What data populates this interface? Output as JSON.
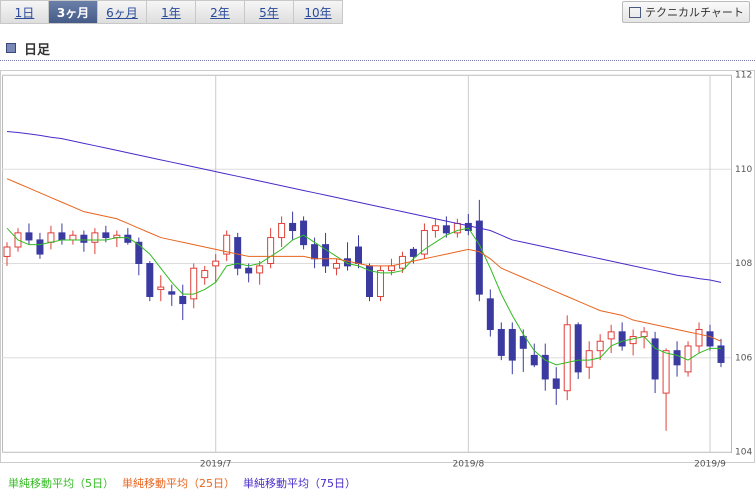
{
  "tabs": [
    "1日",
    "3ヶ月",
    "6ヶ月",
    "1年",
    "2年",
    "5年",
    "10年"
  ],
  "selected_tab": 1,
  "button": "テクニカルチャート",
  "section_title": "日足",
  "chart_data": {
    "type": "candlestick",
    "categories": [
      null,
      null,
      null,
      null,
      null,
      null,
      null,
      null,
      null,
      null,
      null,
      null,
      null,
      null,
      null,
      null,
      null,
      null,
      null,
      "2019/7",
      null,
      null,
      null,
      null,
      null,
      null,
      null,
      null,
      null,
      null,
      null,
      null,
      null,
      null,
      null,
      null,
      null,
      null,
      null,
      null,
      null,
      null,
      "2019/8",
      null,
      null,
      null,
      null,
      null,
      null,
      null,
      null,
      null,
      null,
      null,
      null,
      null,
      null,
      null,
      null,
      null,
      null,
      null,
      null,
      null,
      "2019/9",
      null
    ],
    "open": [
      108.15,
      108.35,
      108.65,
      108.5,
      108.45,
      108.65,
      108.5,
      108.6,
      108.45,
      108.65,
      108.55,
      108.6,
      108.45,
      108.0,
      107.45,
      107.4,
      107.3,
      107.25,
      107.7,
      107.95,
      108.2,
      108.55,
      107.9,
      107.8,
      108.0,
      108.55,
      108.85,
      108.9,
      108.4,
      108.4,
      107.9,
      108.1,
      108.35,
      107.95,
      107.3,
      107.85,
      107.9,
      108.3,
      108.2,
      108.7,
      108.8,
      108.65,
      108.85,
      108.9,
      107.25,
      106.6,
      106.6,
      106.45,
      106.05,
      106.05,
      105.55,
      105.3,
      106.7,
      105.8,
      106.15,
      106.4,
      106.55,
      106.3,
      106.45,
      106.4,
      105.25,
      106.15,
      105.7,
      106.25,
      106.55,
      106.25
    ],
    "high": [
      108.45,
      108.75,
      108.85,
      108.65,
      108.8,
      108.85,
      108.7,
      108.7,
      108.75,
      108.8,
      108.7,
      108.75,
      108.55,
      108.05,
      107.75,
      107.55,
      107.55,
      108.0,
      107.95,
      108.2,
      108.7,
      108.65,
      108.0,
      108.05,
      108.75,
      109.0,
      109.1,
      109.0,
      108.55,
      108.65,
      108.1,
      108.45,
      108.6,
      108.0,
      107.95,
      108.1,
      108.25,
      108.35,
      108.85,
      108.95,
      109.0,
      108.95,
      109.05,
      109.35,
      107.45,
      106.75,
      106.75,
      106.6,
      106.3,
      106.3,
      105.8,
      106.9,
      106.75,
      106.35,
      106.5,
      106.7,
      106.75,
      106.6,
      106.65,
      106.55,
      106.2,
      106.35,
      106.35,
      106.75,
      106.7,
      106.4
    ],
    "low": [
      107.95,
      108.25,
      108.4,
      108.1,
      108.3,
      108.4,
      108.4,
      108.25,
      108.2,
      108.45,
      108.35,
      108.4,
      107.75,
      107.2,
      107.2,
      107.1,
      106.8,
      107.05,
      107.55,
      107.6,
      108.05,
      107.75,
      107.6,
      107.55,
      107.9,
      108.35,
      108.5,
      108.3,
      107.9,
      107.8,
      107.75,
      107.85,
      107.9,
      107.2,
      107.2,
      107.75,
      107.8,
      108.0,
      108.1,
      108.55,
      108.55,
      108.55,
      108.6,
      107.2,
      106.45,
      105.95,
      105.65,
      105.7,
      105.8,
      105.3,
      105.0,
      105.1,
      105.55,
      105.55,
      105.95,
      106.1,
      106.15,
      106.05,
      106.2,
      105.25,
      104.45,
      105.6,
      105.6,
      106.1,
      106.15,
      105.8
    ],
    "close": [
      108.35,
      108.65,
      108.5,
      108.2,
      108.65,
      108.5,
      108.6,
      108.45,
      108.65,
      108.55,
      108.6,
      108.45,
      108.0,
      107.3,
      107.5,
      107.35,
      107.15,
      107.9,
      107.85,
      108.05,
      108.6,
      107.9,
      107.8,
      107.95,
      108.55,
      108.85,
      108.7,
      108.4,
      108.1,
      107.95,
      108.0,
      107.95,
      108.0,
      107.3,
      107.85,
      107.95,
      108.15,
      108.15,
      108.7,
      108.8,
      108.65,
      108.85,
      108.7,
      107.35,
      106.6,
      106.05,
      105.95,
      106.2,
      105.85,
      105.55,
      105.35,
      106.7,
      105.7,
      106.15,
      106.35,
      106.55,
      106.25,
      106.45,
      106.55,
      105.55,
      106.15,
      105.85,
      106.25,
      106.6,
      106.25,
      105.9
    ],
    "up_color": "#e0403a",
    "down_color": "#3a3aa0",
    "series": [
      {
        "name": "単純移動平均（5日）",
        "color": "#33bb22",
        "values": [
          108.75,
          108.5,
          108.4,
          108.4,
          108.45,
          108.5,
          108.5,
          108.5,
          108.5,
          108.5,
          108.55,
          108.55,
          108.4,
          108.2,
          107.9,
          107.6,
          107.35,
          107.35,
          107.45,
          107.6,
          107.95,
          108.0,
          107.95,
          108.0,
          108.15,
          108.3,
          108.5,
          108.6,
          108.45,
          108.3,
          108.15,
          108.0,
          107.95,
          107.85,
          107.8,
          107.8,
          107.85,
          108.1,
          108.3,
          108.45,
          108.6,
          108.7,
          108.75,
          108.4,
          107.9,
          107.35,
          106.9,
          106.5,
          106.15,
          105.95,
          105.85,
          105.9,
          105.95,
          105.95,
          106.0,
          106.25,
          106.35,
          106.4,
          106.45,
          106.2,
          106.1,
          106.05,
          105.95,
          106.1,
          106.2,
          106.2
        ]
      },
      {
        "name": "単純移動平均（25日）",
        "color": "#e8641e",
        "values": [
          109.8,
          109.7,
          109.6,
          109.5,
          109.4,
          109.3,
          109.2,
          109.1,
          109.05,
          109.0,
          108.95,
          108.85,
          108.75,
          108.65,
          108.55,
          108.5,
          108.45,
          108.4,
          108.35,
          108.3,
          108.25,
          108.2,
          108.15,
          108.15,
          108.15,
          108.15,
          108.15,
          108.15,
          108.1,
          108.1,
          108.1,
          108.05,
          108.0,
          107.95,
          107.95,
          107.95,
          108.0,
          108.05,
          108.1,
          108.15,
          108.2,
          108.25,
          108.3,
          108.25,
          108.1,
          107.9,
          107.8,
          107.7,
          107.6,
          107.5,
          107.4,
          107.3,
          107.2,
          107.1,
          107.0,
          106.95,
          106.9,
          106.8,
          106.75,
          106.7,
          106.65,
          106.6,
          106.55,
          106.5,
          106.45,
          106.35
        ]
      },
      {
        "name": "単純移動平均（75日）",
        "color": "#4a2ac8",
        "values": [
          110.8,
          110.78,
          110.75,
          110.72,
          110.68,
          110.65,
          110.6,
          110.55,
          110.5,
          110.45,
          110.4,
          110.35,
          110.3,
          110.25,
          110.2,
          110.15,
          110.1,
          110.05,
          110.0,
          109.95,
          109.9,
          109.85,
          109.8,
          109.75,
          109.7,
          109.65,
          109.6,
          109.55,
          109.5,
          109.45,
          109.4,
          109.35,
          109.3,
          109.25,
          109.2,
          109.15,
          109.1,
          109.05,
          109.0,
          108.95,
          108.9,
          108.85,
          108.8,
          108.75,
          108.7,
          108.6,
          108.5,
          108.45,
          108.4,
          108.35,
          108.3,
          108.25,
          108.2,
          108.15,
          108.1,
          108.05,
          108.0,
          107.95,
          107.9,
          107.85,
          107.8,
          107.75,
          107.72,
          107.68,
          107.65,
          107.6
        ]
      }
    ],
    "ylim": [
      104,
      112
    ],
    "yticks": [
      104,
      106,
      108,
      110,
      112
    ],
    "grid": true
  }
}
